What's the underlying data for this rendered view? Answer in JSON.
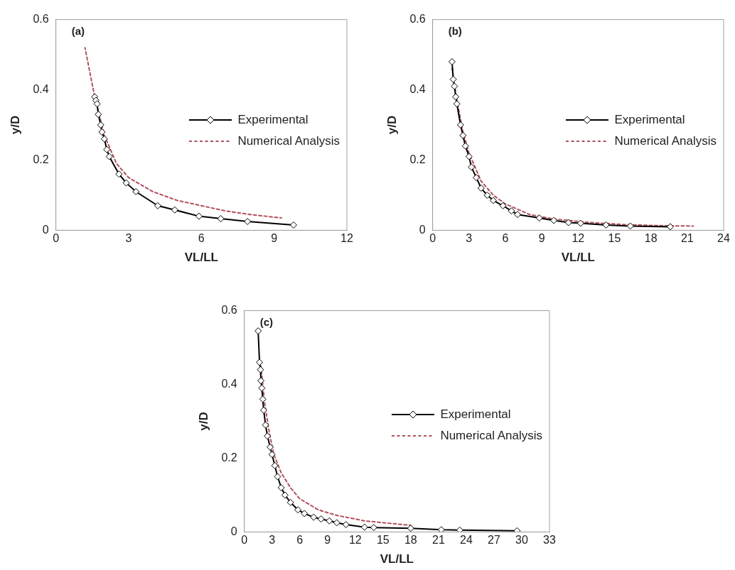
{
  "chart_data": [
    {
      "type": "line",
      "annotations": [
        "(a)"
      ],
      "xlabel": "VL/LL",
      "ylabel": "y/D",
      "xlim": [
        0,
        12
      ],
      "xticks": [
        0,
        3,
        6,
        9,
        12
      ],
      "ylim": [
        0,
        0.6
      ],
      "yticks": [
        0,
        0.2,
        0.4,
        0.6
      ],
      "grid": false,
      "legend": "right",
      "series": [
        {
          "name": "Experimental",
          "color": "#000000",
          "marker": "diamond",
          "line_style": "solid",
          "x": [
            1.6,
            1.65,
            1.7,
            1.75,
            1.85,
            1.9,
            2.0,
            2.1,
            2.2,
            2.6,
            2.9,
            3.3,
            4.2,
            4.9,
            5.9,
            6.8,
            7.9,
            9.8
          ],
          "values": [
            0.38,
            0.37,
            0.36,
            0.33,
            0.3,
            0.28,
            0.26,
            0.23,
            0.21,
            0.16,
            0.135,
            0.11,
            0.07,
            0.058,
            0.04,
            0.033,
            0.025,
            0.015
          ]
        },
        {
          "name": "Numerical Analysis",
          "color": "#b0505a",
          "marker": "none",
          "line_style": "dashed",
          "x": [
            1.2,
            1.4,
            1.6,
            2.0,
            2.5,
            3.0,
            4.0,
            5.0,
            6.0,
            7.0,
            8.0,
            9.3
          ],
          "values": [
            0.52,
            0.45,
            0.38,
            0.27,
            0.19,
            0.15,
            0.11,
            0.085,
            0.07,
            0.055,
            0.045,
            0.035
          ]
        }
      ]
    },
    {
      "type": "line",
      "annotations": [
        "(b)"
      ],
      "xlabel": "VL/LL",
      "ylabel": "y/D",
      "xlim": [
        0,
        24
      ],
      "xticks": [
        0,
        3,
        6,
        9,
        12,
        15,
        18,
        21,
        24
      ],
      "ylim": [
        0,
        0.6
      ],
      "yticks": [
        0,
        0.2,
        0.4,
        0.6
      ],
      "grid": false,
      "legend": "right",
      "series": [
        {
          "name": "Experimental",
          "color": "#000000",
          "marker": "diamond",
          "line_style": "solid",
          "x": [
            1.6,
            1.7,
            1.8,
            1.9,
            2.0,
            2.3,
            2.5,
            2.7,
            3.0,
            3.2,
            3.6,
            4.0,
            4.5,
            5.0,
            5.8,
            6.5,
            7.0,
            8.8,
            10.0,
            11.2,
            12.2,
            14.3,
            16.3,
            19.6
          ],
          "values": [
            0.48,
            0.43,
            0.41,
            0.38,
            0.36,
            0.3,
            0.27,
            0.24,
            0.21,
            0.18,
            0.15,
            0.12,
            0.1,
            0.085,
            0.07,
            0.055,
            0.045,
            0.035,
            0.028,
            0.022,
            0.02,
            0.015,
            0.012,
            0.01
          ]
        },
        {
          "name": "Numerical Analysis",
          "color": "#b0505a",
          "marker": "none",
          "line_style": "dashed",
          "x": [
            1.6,
            2.0,
            2.5,
            3.0,
            4.0,
            5.0,
            6.0,
            8.0,
            10.0,
            13.0,
            16.0,
            19.0,
            21.5
          ],
          "values": [
            0.46,
            0.37,
            0.28,
            0.22,
            0.14,
            0.1,
            0.075,
            0.045,
            0.032,
            0.022,
            0.016,
            0.013,
            0.012
          ]
        }
      ]
    },
    {
      "type": "line",
      "annotations": [
        "(c)"
      ],
      "xlabel": "VL/LL",
      "ylabel": "y/D",
      "xlim": [
        0,
        33
      ],
      "xticks": [
        0,
        3,
        6,
        9,
        12,
        15,
        18,
        21,
        24,
        27,
        30,
        33
      ],
      "ylim": [
        0,
        0.6
      ],
      "yticks": [
        0,
        0.2,
        0.4,
        0.6
      ],
      "grid": false,
      "legend": "right",
      "series": [
        {
          "name": "Experimental",
          "color": "#000000",
          "marker": "diamond",
          "line_style": "solid",
          "x": [
            1.5,
            1.65,
            1.75,
            1.8,
            1.9,
            2.0,
            2.1,
            2.3,
            2.5,
            2.8,
            3.0,
            3.3,
            3.6,
            4.0,
            4.4,
            5.0,
            5.8,
            6.5,
            7.5,
            8.3,
            9.2,
            10.0,
            11.0,
            13.0,
            14.0,
            18.0,
            21.3,
            23.3,
            29.5
          ],
          "values": [
            0.545,
            0.46,
            0.44,
            0.41,
            0.39,
            0.36,
            0.33,
            0.29,
            0.26,
            0.23,
            0.21,
            0.18,
            0.15,
            0.12,
            0.1,
            0.08,
            0.06,
            0.05,
            0.04,
            0.035,
            0.03,
            0.025,
            0.02,
            0.013,
            0.012,
            0.01,
            0.006,
            0.005,
            0.003
          ]
        },
        {
          "name": "Numerical Analysis",
          "color": "#b0505a",
          "marker": "none",
          "line_style": "dashed",
          "x": [
            1.8,
            2.2,
            2.7,
            3.2,
            4.0,
            5.0,
            6.0,
            8.0,
            10.0,
            13.0,
            18.0
          ],
          "values": [
            0.45,
            0.35,
            0.27,
            0.21,
            0.16,
            0.12,
            0.09,
            0.06,
            0.045,
            0.03,
            0.018
          ]
        }
      ]
    }
  ]
}
